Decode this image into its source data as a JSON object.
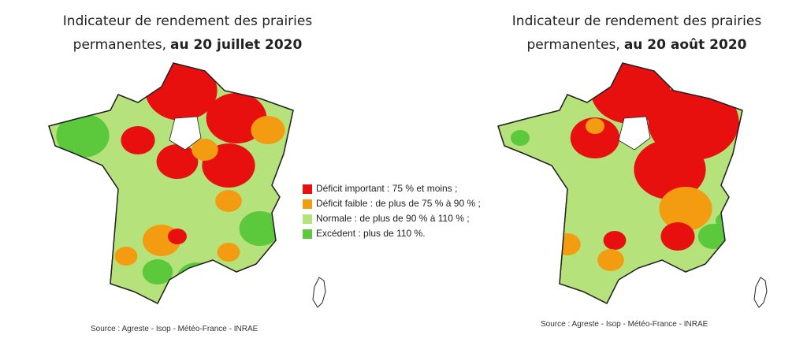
{
  "maps": [
    {
      "title_line1": "Indicateur de rendement des prairies",
      "title_line2": "permanentes,",
      "title_bold": "au 20 juillet 2020",
      "source": "Source : Agreste - Isop - Météo-France - INRAE"
    },
    {
      "title_line1": "Indicateur de rendement des prairies",
      "title_line2": "permanentes,",
      "title_bold": "au 20 août 2020",
      "source": "Source : Agreste - Isop - Météo-France - INRAE"
    }
  ],
  "legend": [
    {
      "label": "Déficit important : 75 % et moins ;",
      "color": "#e8100f"
    },
    {
      "label": "Déficit faible : de plus de 75 % à 90 % ;",
      "color": "#f39c12"
    },
    {
      "label": "Normale : de plus de 90 % à 110 % ;",
      "color": "#b5e27a"
    },
    {
      "label": "Excédent : plus de 110 %.",
      "color": "#5cc83c"
    }
  ]
}
